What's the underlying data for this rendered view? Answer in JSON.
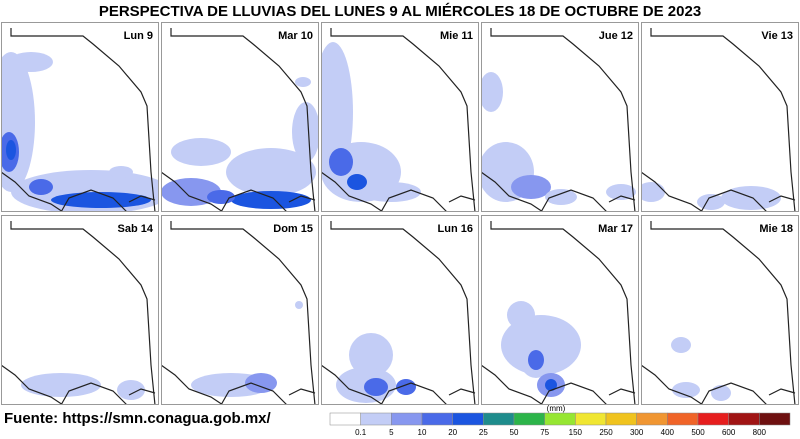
{
  "header": {
    "title": "PERSPECTIVA DE LLUVIAS DEL LUNES 9 AL MIÉRCOLES 18 DE OCTUBRE DE 2023"
  },
  "panels": [
    {
      "label": "Lun 9"
    },
    {
      "label": "Mar 10"
    },
    {
      "label": "Mie 11"
    },
    {
      "label": "Jue 12"
    },
    {
      "label": "Vie 13"
    },
    {
      "label": "Sab 14"
    },
    {
      "label": "Dom 15"
    },
    {
      "label": "Lun 16"
    },
    {
      "label": "Mar 17"
    },
    {
      "label": "Mie 18"
    }
  ],
  "footer": {
    "source": "Fuente: https://smn.conagua.gob.mx/"
  },
  "legend": {
    "unit": "(mm)",
    "labels": [
      "0.1",
      "5",
      "10",
      "20",
      "25",
      "50",
      "75",
      "150",
      "250",
      "300",
      "400",
      "500",
      "600",
      "800"
    ],
    "colors": [
      "#ffffff",
      "#c3cdf6",
      "#8797ef",
      "#4a6ae8",
      "#1b55e0",
      "#1e8c8c",
      "#2cb44a",
      "#96e632",
      "#f0e632",
      "#f0c31e",
      "#f09632",
      "#f06428",
      "#e61e1e",
      "#a01414",
      "#6e1010"
    ]
  }
}
